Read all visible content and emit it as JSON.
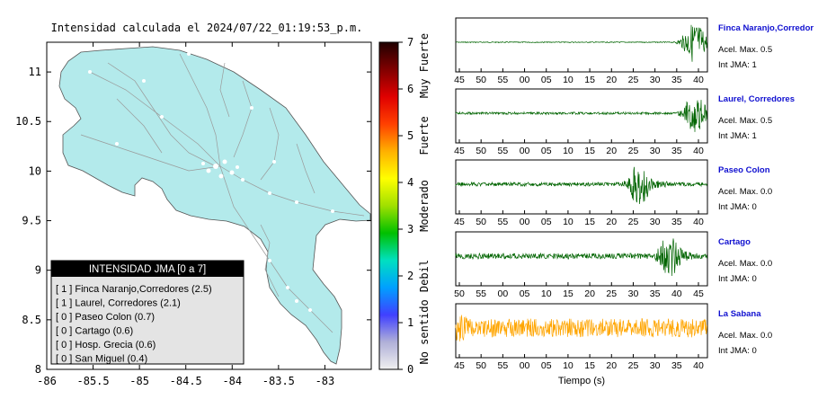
{
  "title": "Intensidad calculada el 2024/07/22_01:19:53_p.m.",
  "map": {
    "x_ticks": [
      "-86",
      "-85.5",
      "-85",
      "-84.5",
      "-84",
      "-83.5",
      "-83"
    ],
    "y_ticks": [
      "11",
      "10.5",
      "10",
      "9.5",
      "9",
      "8.5",
      "8"
    ],
    "xlim": [
      -86,
      -82.5
    ],
    "ylim": [
      8,
      11.3
    ]
  },
  "colorbar": {
    "ticks": [
      "0",
      "1",
      "2",
      "3",
      "4",
      "5",
      "6",
      "7"
    ],
    "labels": [
      "No sentido",
      "Debil",
      "Moderado",
      "Fuerte",
      "Muy Fuerte"
    ],
    "colors": [
      "#f0f0f0",
      "#b0b0d8",
      "#4040ff",
      "#00a0ff",
      "#00e0c0",
      "#00c000",
      "#a0e000",
      "#ffff00",
      "#ffb000",
      "#ff4000",
      "#e00000",
      "#800000",
      "#200000"
    ]
  },
  "legend": {
    "title": "INTENSIDAD JMA [0 a 7]",
    "items": [
      "[ 1 ] Finca Naranjo,Corredores (2.5)",
      "[ 1 ] Laurel, Corredores (2.1)",
      "[ 0 ] Paseo Colon (0.7)",
      "[ 0 ] Cartago (0.6)",
      "[ 0 ] Hosp. Grecia (0.6)",
      "[ 0 ] San Miguel (0.4)"
    ]
  },
  "chart_data": [
    {
      "type": "line",
      "station": "Finca Naranjo,Corredor",
      "accel": "Acel. Max. 0.5",
      "intensity": "Int JMA: 1",
      "color": "#006400",
      "x_ticks": [
        "45",
        "50",
        "55",
        "00",
        "05",
        "10",
        "15",
        "20",
        "25",
        "30",
        "35",
        "40"
      ],
      "event_at": 0.95,
      "noise": 0.02,
      "burst": 0.9
    },
    {
      "type": "line",
      "station": "Laurel, Corredores",
      "accel": "Acel. Max. 0.5",
      "intensity": "Int JMA: 1",
      "color": "#006400",
      "x_ticks": [
        "45",
        "50",
        "55",
        "00",
        "05",
        "10",
        "15",
        "20",
        "25",
        "30",
        "35",
        "40"
      ],
      "event_at": 0.95,
      "noise": 0.05,
      "burst": 0.85
    },
    {
      "type": "line",
      "station": "Paseo Colon",
      "accel": "Acel. Max. 0.0",
      "intensity": "Int JMA: 0",
      "color": "#006400",
      "x_ticks": [
        "45",
        "50",
        "55",
        "00",
        "05",
        "10",
        "15",
        "20",
        "25",
        "30",
        "35",
        "40"
      ],
      "event_at": 0.73,
      "noise": 0.08,
      "burst": 0.95
    },
    {
      "type": "line",
      "station": "Cartago",
      "accel": "Acel. Max. 0.0",
      "intensity": "Int JMA: 0",
      "color": "#006400",
      "x_ticks": [
        "50",
        "55",
        "00",
        "05",
        "10",
        "15",
        "20",
        "25",
        "30",
        "35",
        "40",
        "45"
      ],
      "event_at": 0.85,
      "noise": 0.12,
      "burst": 0.95
    },
    {
      "type": "line",
      "station": "La Sabana",
      "accel": "Acel. Max. 0.0",
      "intensity": "Int JMA: 0",
      "color": "#ffa500",
      "x_ticks": [
        "45",
        "50",
        "55",
        "00",
        "05",
        "10",
        "15",
        "20",
        "25",
        "30",
        "35",
        "40"
      ],
      "event_at": 0.02,
      "noise": 0.4,
      "burst": 0.6
    }
  ],
  "xlabel": "Tiempo (s)"
}
